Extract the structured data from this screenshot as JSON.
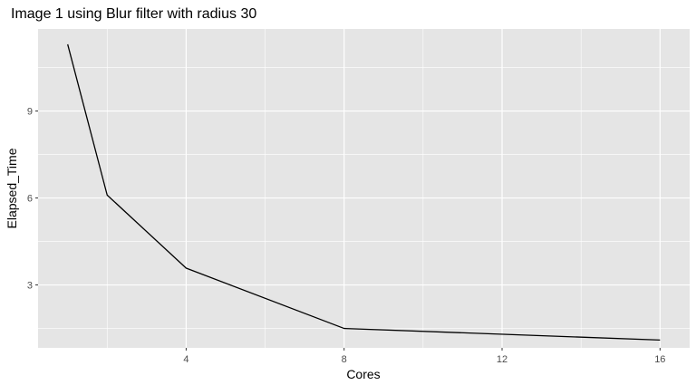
{
  "chart_data": {
    "type": "line",
    "title": "Image 1 using Blur filter with radius 30",
    "xlabel": "Cores",
    "ylabel": "Elapsed_Time",
    "xlim": [
      0.25,
      16.75
    ],
    "ylim": [
      0.83,
      11.83
    ],
    "x_ticks": [
      4,
      8,
      12,
      16
    ],
    "y_ticks": [
      3,
      6,
      9
    ],
    "x_minor": [
      2,
      6,
      10,
      14
    ],
    "y_minor": [
      1.5,
      4.5,
      7.5,
      10.5
    ],
    "grid": true,
    "colors": {
      "panel": "#e5e5e5",
      "gridline": "#ffffff",
      "line": "#000000"
    },
    "series": [
      {
        "x": [
          1,
          2,
          4,
          8,
          16
        ],
        "y": [
          11.3,
          6.1,
          3.58,
          1.5,
          1.1
        ]
      }
    ]
  }
}
